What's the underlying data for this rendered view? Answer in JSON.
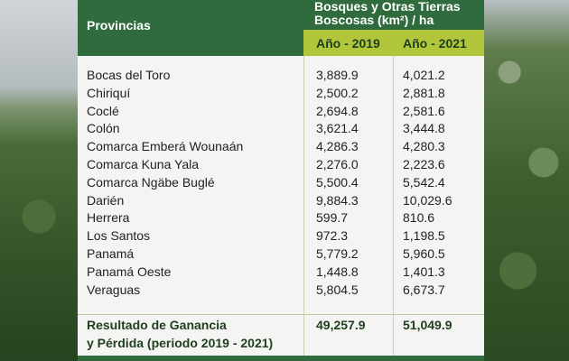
{
  "header": {
    "col1": "Provincias",
    "group": [
      "Bosques y Otras Tierras",
      "Boscosas (km²) / ha"
    ],
    "years": [
      "Año - 2019",
      "Año - 2021"
    ]
  },
  "rows": [
    [
      "Bocas del Toro",
      "3,889.9",
      "4,021.2"
    ],
    [
      "Chiriquí",
      "2,500.2",
      "2,881.8"
    ],
    [
      "Coclé",
      "2,694.8",
      "2,581.6"
    ],
    [
      "Colón",
      "3,621.4",
      "3,444.8"
    ],
    [
      "Comarca Emberá Wounaán",
      "4,286.3",
      "4,280.3"
    ],
    [
      "Comarca Kuna Yala",
      "2,276.0",
      "2,223.6"
    ],
    [
      "Comarca Ngäbe Buglé",
      "5,500.4",
      "5,542.4"
    ],
    [
      "Darién",
      "9,884.3",
      "10,029.6"
    ],
    [
      "Herrera",
      "599.7",
      "810.6"
    ],
    [
      "Los Santos",
      "972.3",
      "1,198.5"
    ],
    [
      "Panamá",
      "5,779.2",
      "5,960.5"
    ],
    [
      "Panamá Oeste",
      "1,448.8",
      "1,401.3"
    ],
    [
      "Veraguas",
      "5,804.5",
      "6,673.7"
    ]
  ],
  "total": {
    "label": [
      "Resultado de Ganancia",
      "y Pérdida (periodo 2019 - 2021)"
    ],
    "values": [
      "49,257.9",
      "51,049.9"
    ]
  }
}
